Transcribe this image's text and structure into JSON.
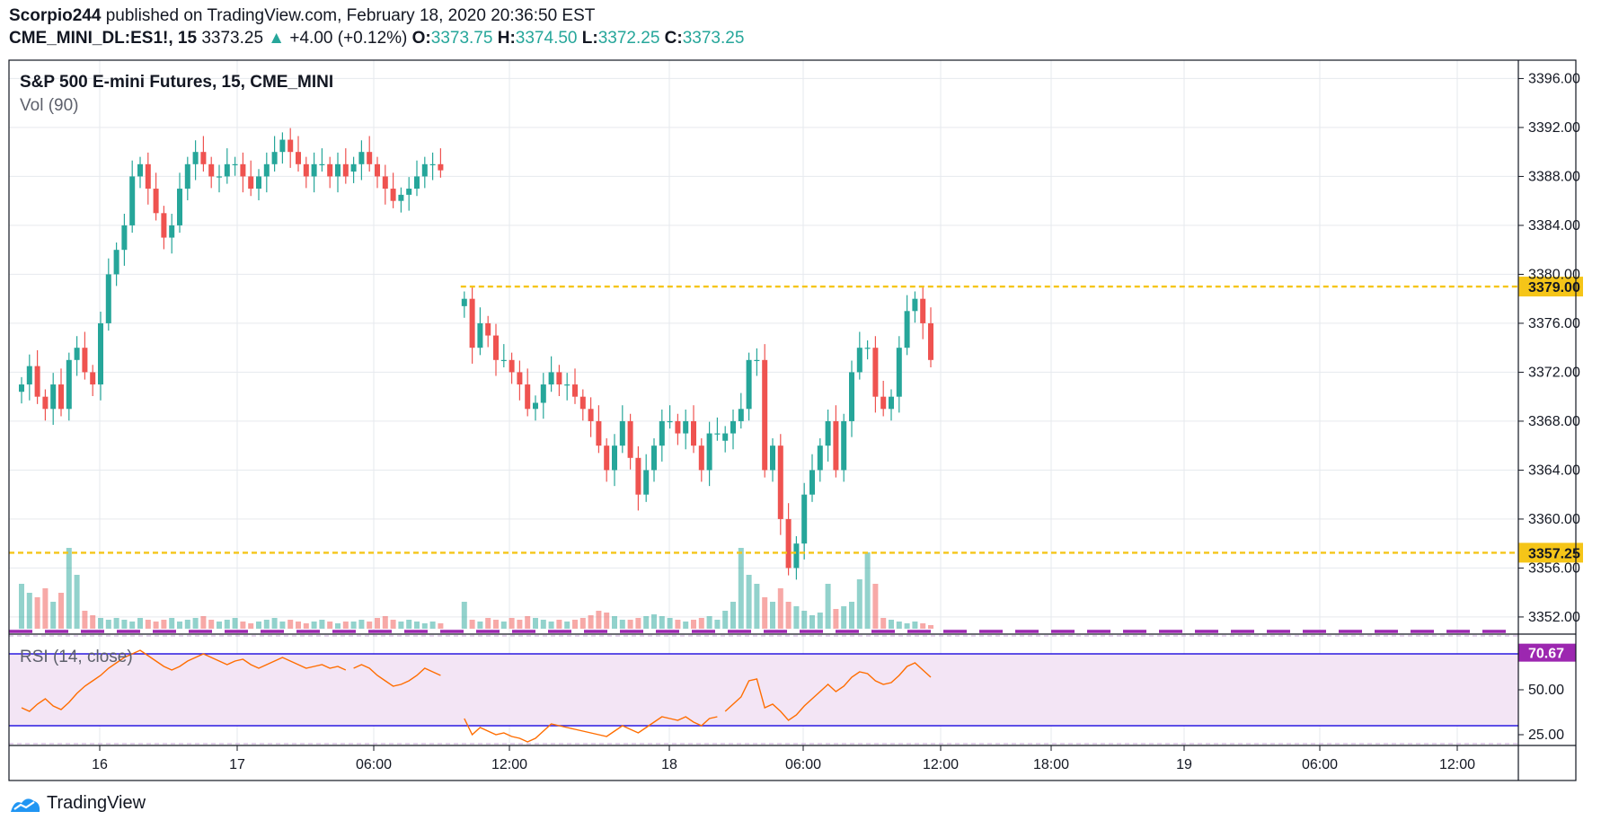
{
  "header": {
    "user": "Scorpio244",
    "published": " published on TradingView.com, February 18, 2020 20:36:50 EST",
    "symbol": "CME_MINI_DL:ES1!, 15",
    "last": "3373.25",
    "change": "+4.00 (+0.12%)",
    "o_label": "O:",
    "o": "3373.75",
    "h_label": "H:",
    "h": "3374.50",
    "l_label": "L:",
    "l": "3372.25",
    "c_label": "C:",
    "c": "3373.25"
  },
  "brand": "TradingView",
  "colors": {
    "up": "#26a69a",
    "down": "#ef5350",
    "level": "#f5c518",
    "rsi": "#ff6d00",
    "rsi_band": "#2a1ae0",
    "rsi_fill": "#f3e5f5",
    "grid": "#e6e9ee",
    "purple": "#9c27b0"
  },
  "chart_data": {
    "type": "candlestick",
    "title": "S&P 500 E-mini Futures, 15, CME_MINI",
    "volume_label": "Vol (90)",
    "rsi_label": "RSI (14, close)",
    "price_ticks": [
      "3396.00",
      "3392.00",
      "3388.00",
      "3384.00",
      "3380.00",
      "3376.00",
      "3372.00",
      "3368.00",
      "3364.00",
      "3360.00",
      "3356.00",
      "3352.00"
    ],
    "ylim": [
      3350.6,
      3397.5
    ],
    "rsi_ticks": [
      "50.00",
      "25.00"
    ],
    "rsi_ylim": [
      19,
      81
    ],
    "rsi_bands": [
      70,
      30
    ],
    "rsi_last": "70.67",
    "x_ticks": [
      "16",
      "17",
      "06:00",
      "12:00",
      "18",
      "06:00",
      "12:00",
      "18:00",
      "19",
      "06:00",
      "12:00"
    ],
    "levels": [
      {
        "label": "3379.00",
        "value": 3379.0,
        "start": 3.0
      },
      {
        "label": "3357.25",
        "value": 3357.25,
        "start": 0
      }
    ],
    "segments": [
      {
        "x0": 0,
        "count": 42,
        "price": [
          3371,
          3372.5,
          3370,
          3369,
          3371,
          3369,
          3373,
          3374,
          3372,
          3371,
          3376,
          3380,
          3382,
          3384,
          3388,
          3389,
          3387,
          3385,
          3383,
          3384,
          3387,
          3389,
          3390,
          3389,
          3388,
          3388,
          3389,
          3389,
          3388,
          3387,
          3388,
          3389,
          3390,
          3391,
          3390,
          3389,
          3388,
          3389,
          3389,
          3388,
          3389,
          3388
        ],
        "vol": [
          50,
          40,
          35,
          45,
          30,
          40,
          90,
          60,
          20,
          15,
          12,
          10,
          12,
          10,
          8,
          12,
          10,
          8,
          10,
          12,
          8,
          10,
          12,
          14,
          10,
          8,
          10,
          12,
          8,
          6,
          8,
          10,
          12,
          8,
          10,
          8,
          6,
          8,
          10,
          8,
          6,
          8
        ]
      },
      {
        "x0": 42,
        "count": 12,
        "price": [
          3389,
          3390,
          3389,
          3388,
          3387,
          3386,
          3386.5,
          3387,
          3388,
          3389,
          3389,
          3388.5
        ],
        "vol": [
          8,
          10,
          8,
          12,
          14,
          10,
          8,
          10,
          8,
          6,
          8,
          6
        ]
      },
      {
        "x0": 56,
        "count": 33,
        "price": [
          3378,
          3374,
          3376,
          3375,
          3373,
          3373,
          3372,
          3371,
          3369,
          3369.5,
          3371,
          3372,
          3371,
          3371,
          3370,
          3369,
          3368,
          3366,
          3364,
          3366,
          3368,
          3365,
          3362,
          3364,
          3366,
          3368,
          3368,
          3367,
          3368,
          3366,
          3364,
          3367,
          3367
        ],
        "vol": [
          30,
          10,
          8,
          12,
          10,
          8,
          12,
          10,
          14,
          12,
          10,
          8,
          10,
          8,
          10,
          12,
          15,
          20,
          18,
          14,
          10,
          10,
          12,
          14,
          16,
          14,
          12,
          10,
          8,
          10,
          12,
          14,
          10
        ]
      },
      {
        "x0": 89,
        "count": 27,
        "price": [
          3367,
          3368,
          3369,
          3373,
          3373,
          3364,
          3366,
          3360,
          3356,
          3358,
          3362,
          3364,
          3366,
          3368,
          3364,
          3368,
          3372,
          3374,
          3374,
          3370,
          3369,
          3370,
          3374,
          3377,
          3378,
          3376,
          3373
        ],
        "vol": [
          20,
          30,
          90,
          60,
          50,
          35,
          30,
          45,
          30,
          25,
          20,
          15,
          18,
          50,
          22,
          25,
          30,
          55,
          85,
          50,
          12,
          10,
          8,
          6,
          8,
          6,
          4
        ]
      }
    ],
    "rsi": [
      {
        "x0": 0,
        "values": [
          40,
          38,
          42,
          45,
          41,
          39,
          43,
          48,
          52,
          55,
          58,
          62,
          65,
          68,
          70,
          72,
          69,
          66,
          63,
          61,
          63,
          66,
          68,
          70,
          68,
          66,
          64,
          66,
          67,
          64,
          62,
          64,
          66,
          68,
          66,
          64,
          62,
          63,
          64,
          62,
          63,
          61
        ]
      },
      {
        "x0": 42,
        "values": [
          62,
          64,
          62,
          58,
          55,
          52,
          53,
          55,
          58,
          62,
          60,
          58
        ]
      },
      {
        "x0": 56,
        "values": [
          34,
          25,
          29,
          27,
          25,
          26,
          24,
          23,
          21,
          23,
          27,
          31,
          30,
          29,
          28,
          27,
          26,
          25,
          24,
          27,
          30,
          28,
          26,
          29,
          32,
          35,
          34,
          33,
          35,
          32,
          30,
          34,
          35
        ]
      },
      {
        "x0": 89,
        "values": [
          38,
          42,
          46,
          55,
          56,
          40,
          42,
          38,
          33,
          36,
          41,
          45,
          49,
          53,
          49,
          52,
          57,
          60,
          59,
          55,
          53,
          54,
          58,
          63,
          65,
          61,
          57
        ]
      }
    ]
  }
}
